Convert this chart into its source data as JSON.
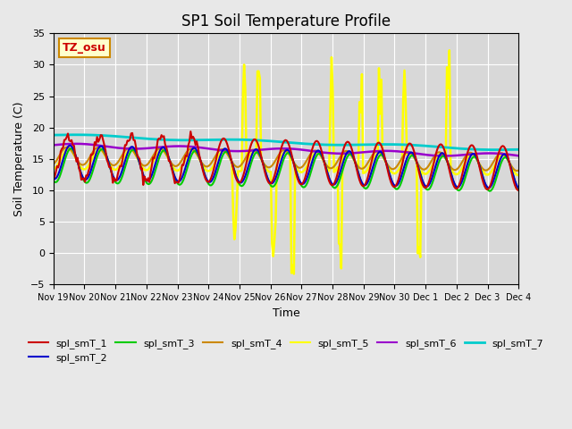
{
  "title": "SP1 Soil Temperature Profile",
  "xlabel": "Time",
  "ylabel": "Soil Temperature (C)",
  "ylim": [
    -5,
    35
  ],
  "yticks": [
    -5,
    0,
    5,
    10,
    15,
    20,
    25,
    30,
    35
  ],
  "xtick_labels": [
    "Nov 19",
    "Nov 20",
    "Nov 21",
    "Nov 22",
    "Nov 23",
    "Nov 24",
    "Nov 25",
    "Nov 26",
    "Nov 27",
    "Nov 28",
    "Nov 29",
    "Nov 30",
    "Dec 1",
    "Dec 2",
    "Dec 3",
    "Dec 4"
  ],
  "series_colors": {
    "spl_smT_1": "#cc0000",
    "spl_smT_2": "#0000cc",
    "spl_smT_3": "#00cc00",
    "spl_smT_4": "#cc8800",
    "spl_smT_5": "#ffff00",
    "spl_smT_6": "#9900cc",
    "spl_smT_7": "#00cccc"
  },
  "legend_labels": [
    "spl_smT_1",
    "spl_smT_2",
    "spl_smT_3",
    "spl_smT_4",
    "spl_smT_5",
    "spl_smT_6",
    "spl_smT_7"
  ],
  "tz_label": "TZ_osu",
  "background_color": "#e8e8e8",
  "plot_bg_color": "#d8d8d8"
}
